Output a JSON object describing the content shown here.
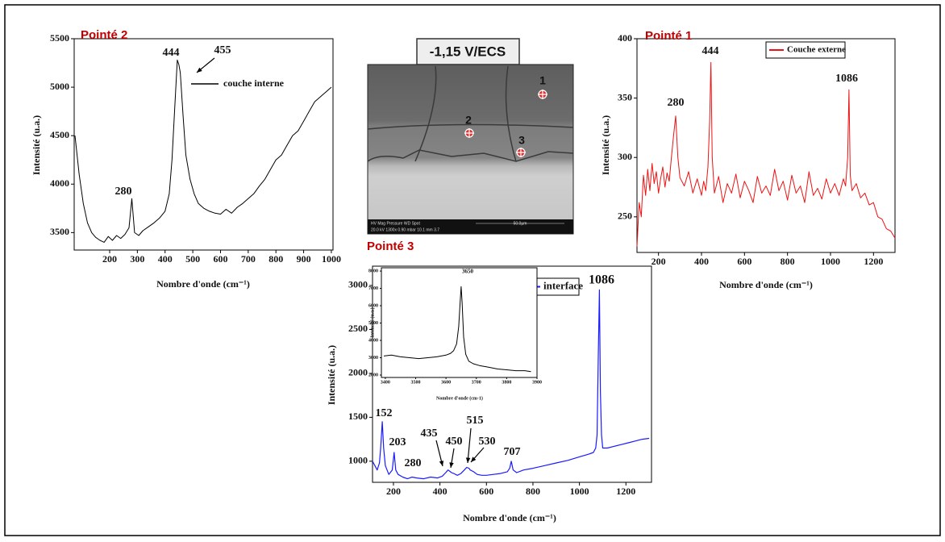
{
  "chart_data": [
    {
      "type": "line",
      "title": "Pointé 2",
      "y_label": "Intensité (u.a.)",
      "x_label": "Nombre d'onde (cm⁻¹)",
      "xlim": [
        72,
        1006
      ],
      "ylim": [
        3320,
        5500
      ],
      "xticks": [
        200,
        300,
        400,
        500,
        600,
        700,
        800,
        900,
        1000
      ],
      "yticks": [
        3500,
        4000,
        4500,
        5000,
        5500
      ],
      "x": [
        75,
        90,
        105,
        120,
        135,
        150,
        165,
        180,
        195,
        210,
        225,
        240,
        255,
        270,
        280,
        290,
        305,
        320,
        340,
        360,
        380,
        400,
        415,
        425,
        435,
        444,
        450,
        455,
        465,
        475,
        490,
        505,
        520,
        540,
        560,
        580,
        600,
        620,
        640,
        660,
        680,
        700,
        720,
        740,
        760,
        780,
        800,
        820,
        840,
        860,
        880,
        900,
        920,
        940,
        960,
        980,
        1000
      ],
      "series": [
        {
          "name": "couche interne",
          "color": "#000000",
          "values": [
            4500,
            4100,
            3800,
            3600,
            3500,
            3450,
            3420,
            3400,
            3460,
            3420,
            3470,
            3440,
            3480,
            3550,
            3850,
            3500,
            3470,
            3520,
            3560,
            3600,
            3650,
            3720,
            3900,
            4250,
            4800,
            5280,
            5230,
            5150,
            4700,
            4300,
            4050,
            3900,
            3800,
            3750,
            3720,
            3700,
            3690,
            3740,
            3700,
            3760,
            3800,
            3850,
            3900,
            3980,
            4050,
            4150,
            4250,
            4300,
            4400,
            4500,
            4550,
            4650,
            4750,
            4850,
            4900,
            4950,
            5000
          ]
        }
      ],
      "annotations": [
        "444",
        "455",
        "280"
      ]
    },
    {
      "type": "line",
      "title": "Pointé 1",
      "y_label": "Intensité (u.a.)",
      "x_label": "Nombre d'onde (cm⁻¹)",
      "xlim": [
        100,
        1300
      ],
      "ylim": [
        220,
        400
      ],
      "xticks": [
        200,
        400,
        600,
        800,
        1000,
        1200
      ],
      "yticks": [
        250,
        300,
        350,
        400
      ],
      "x": [
        100,
        110,
        120,
        130,
        140,
        150,
        160,
        170,
        180,
        190,
        200,
        210,
        220,
        230,
        240,
        250,
        260,
        270,
        280,
        290,
        300,
        320,
        340,
        360,
        380,
        400,
        410,
        420,
        430,
        438,
        444,
        450,
        460,
        480,
        500,
        520,
        540,
        560,
        580,
        600,
        620,
        640,
        660,
        680,
        700,
        720,
        740,
        760,
        780,
        800,
        820,
        840,
        860,
        880,
        900,
        920,
        940,
        960,
        980,
        1000,
        1020,
        1040,
        1060,
        1070,
        1080,
        1086,
        1092,
        1100,
        1120,
        1140,
        1160,
        1180,
        1200,
        1220,
        1240,
        1260,
        1280,
        1300
      ],
      "series": [
        {
          "name": "Couche externe",
          "color": "#ee1111",
          "values": [
            225,
            262,
            250,
            285,
            268,
            290,
            272,
            295,
            278,
            288,
            270,
            282,
            292,
            275,
            287,
            280,
            300,
            318,
            335,
            300,
            283,
            276,
            288,
            270,
            282,
            268,
            280,
            272,
            292,
            330,
            380,
            300,
            270,
            284,
            262,
            278,
            270,
            286,
            266,
            280,
            272,
            262,
            284,
            270,
            276,
            268,
            290,
            272,
            280,
            264,
            285,
            270,
            276,
            262,
            288,
            268,
            274,
            265,
            282,
            270,
            278,
            268,
            282,
            276,
            300,
            357,
            285,
            272,
            278,
            266,
            270,
            260,
            262,
            250,
            248,
            240,
            238,
            232
          ]
        }
      ],
      "annotations": [
        "280",
        "444",
        "1086"
      ]
    },
    {
      "type": "line",
      "title": "Pointé 3",
      "y_label": "Intensité (u.a.)",
      "x_label": "Nombre d'onde (cm⁻¹)",
      "xlim": [
        110,
        1310
      ],
      "ylim": [
        760,
        3220
      ],
      "xticks": [
        200,
        400,
        600,
        800,
        1000,
        1200
      ],
      "yticks": [
        1000,
        1500,
        2000,
        2500,
        3000
      ],
      "x": [
        110,
        120,
        130,
        140,
        145,
        152,
        158,
        165,
        180,
        195,
        203,
        210,
        220,
        240,
        260,
        280,
        300,
        330,
        360,
        390,
        410,
        425,
        435,
        445,
        450,
        460,
        475,
        490,
        505,
        515,
        525,
        530,
        545,
        560,
        580,
        600,
        630,
        660,
        690,
        700,
        707,
        715,
        730,
        760,
        800,
        850,
        900,
        950,
        1000,
        1040,
        1060,
        1070,
        1076,
        1081,
        1086,
        1090,
        1095,
        1100,
        1120,
        1150,
        1180,
        1210,
        1240,
        1270,
        1300
      ],
      "series": [
        {
          "name": "interface",
          "color": "#1a1aff",
          "values": [
            1000,
            950,
            900,
            980,
            1150,
            1450,
            1150,
            950,
            850,
            900,
            1100,
            900,
            850,
            820,
            800,
            820,
            810,
            800,
            820,
            810,
            830,
            870,
            900,
            880,
            870,
            860,
            840,
            860,
            900,
            930,
            920,
            900,
            880,
            850,
            840,
            840,
            850,
            860,
            880,
            920,
            1000,
            900,
            870,
            900,
            920,
            950,
            980,
            1010,
            1050,
            1080,
            1100,
            1150,
            1300,
            2200,
            2950,
            1800,
            1300,
            1150,
            1150,
            1170,
            1190,
            1210,
            1230,
            1250,
            1260
          ]
        }
      ],
      "annotations": [
        "1086",
        "152",
        "203",
        "280",
        "435",
        "450",
        "515",
        "530",
        "707"
      ]
    },
    {
      "type": "line",
      "y_label": "Intensité (u.a.)",
      "x_label": "Nombre d'onde (cm-1)",
      "xlim": [
        3387,
        3900
      ],
      "ylim": [
        1860,
        8190
      ],
      "xticks": [
        3400,
        3500,
        3600,
        3700,
        3800,
        3900
      ],
      "yticks": [
        2000,
        3000,
        4000,
        5000,
        6000,
        7000,
        8000
      ],
      "x": [
        3395,
        3420,
        3450,
        3480,
        3510,
        3540,
        3570,
        3600,
        3615,
        3625,
        3635,
        3642,
        3647,
        3650,
        3653,
        3658,
        3665,
        3675,
        3690,
        3710,
        3740,
        3770,
        3800,
        3830,
        3860,
        3880
      ],
      "series": [
        {
          "color": "#000000",
          "values": [
            3100,
            3150,
            3050,
            3000,
            2950,
            3000,
            3050,
            3150,
            3250,
            3400,
            3800,
            4800,
            6300,
            7100,
            6200,
            4200,
            3200,
            2800,
            2650,
            2550,
            2450,
            2350,
            2300,
            2250,
            2250,
            2200
          ]
        }
      ],
      "annotations": [
        "3650"
      ]
    }
  ],
  "image": {
    "label": "-1,15 V/ECS",
    "points": [
      "1",
      "2",
      "3"
    ],
    "info_header": "HV    Mag    Pressure    WD    Spot",
    "info_values": "20.0 kV 1300x 0.90 mbar 10.1 mm 3.7",
    "scale": "50.0µm"
  }
}
